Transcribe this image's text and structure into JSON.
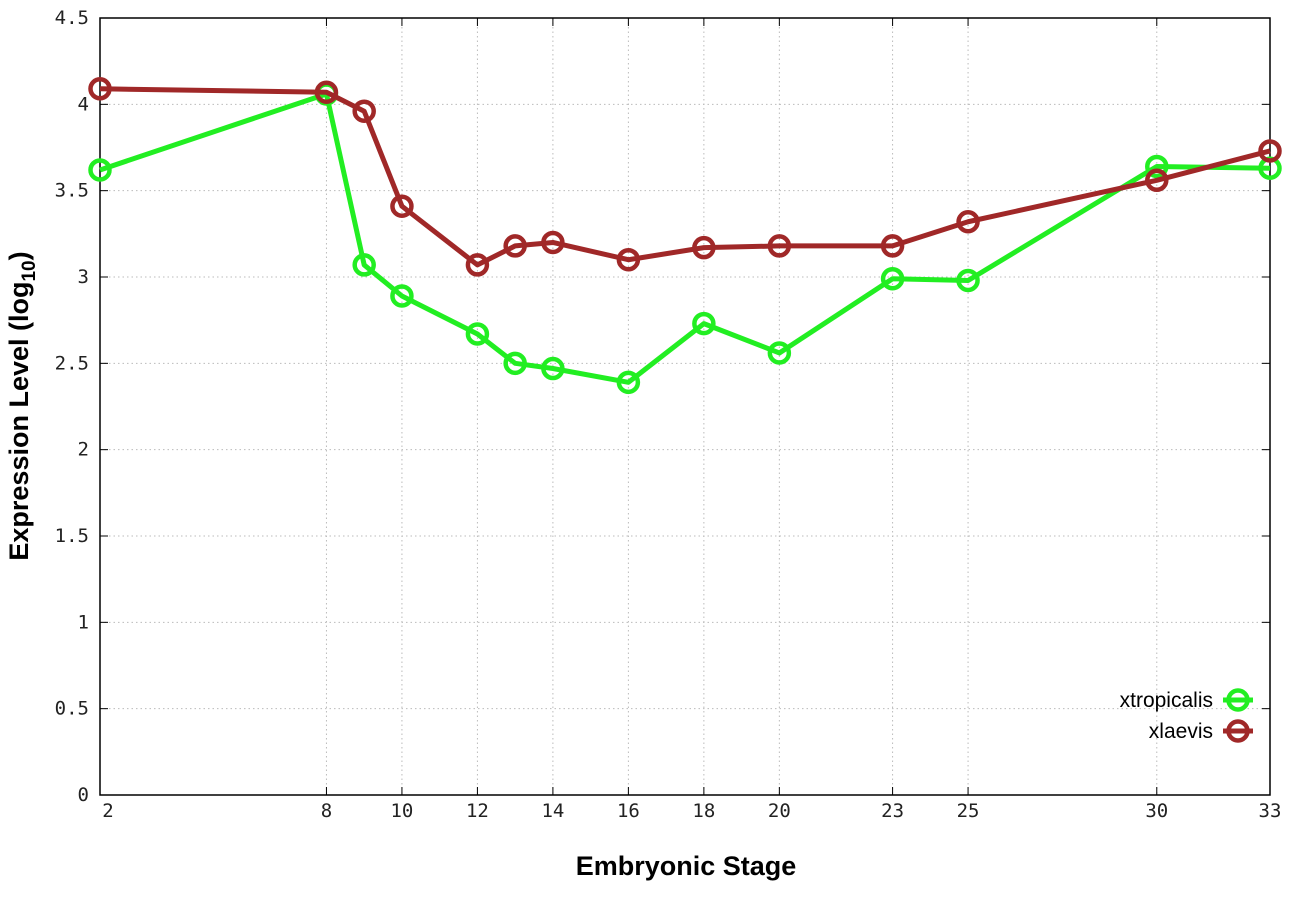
{
  "chart_data": {
    "type": "line",
    "title": "",
    "xlabel": "Embryonic Stage",
    "ylabel_main": "Expression Level (log",
    "ylabel_sub": "10",
    "ylabel_close": ")",
    "xlim": [
      2,
      33
    ],
    "ylim": [
      0,
      4.5
    ],
    "grid": true,
    "legend_position": "bottom-right",
    "x_ticks": [
      2,
      8,
      10,
      12,
      14,
      16,
      18,
      20,
      23,
      25,
      30,
      33
    ],
    "x_tick_labels": [
      "2",
      "8",
      "10",
      "12",
      "14",
      "16",
      "18",
      "20",
      "23",
      "25",
      "30",
      "33"
    ],
    "y_ticks": [
      0,
      0.5,
      1,
      1.5,
      2,
      2.5,
      3,
      3.5,
      4,
      4.5
    ],
    "y_tick_labels": [
      "0",
      "0.5",
      "1",
      "1.5",
      "2",
      "2.5",
      "3",
      "3.5",
      "4",
      "4.5"
    ],
    "x": [
      2,
      8,
      9,
      10,
      12,
      13,
      14,
      16,
      18,
      20,
      23,
      25,
      30,
      33
    ],
    "series": [
      {
        "name": "xtropicalis",
        "color": "#22ee22",
        "values": [
          3.62,
          4.06,
          3.07,
          2.89,
          2.67,
          2.5,
          2.47,
          2.39,
          2.73,
          2.56,
          2.99,
          2.98,
          3.64,
          3.63
        ]
      },
      {
        "name": "xlaevis",
        "color": "#a02828",
        "values": [
          4.09,
          4.07,
          3.96,
          3.41,
          3.07,
          3.18,
          3.2,
          3.1,
          3.17,
          3.18,
          3.18,
          3.32,
          3.56,
          3.73
        ]
      }
    ]
  }
}
